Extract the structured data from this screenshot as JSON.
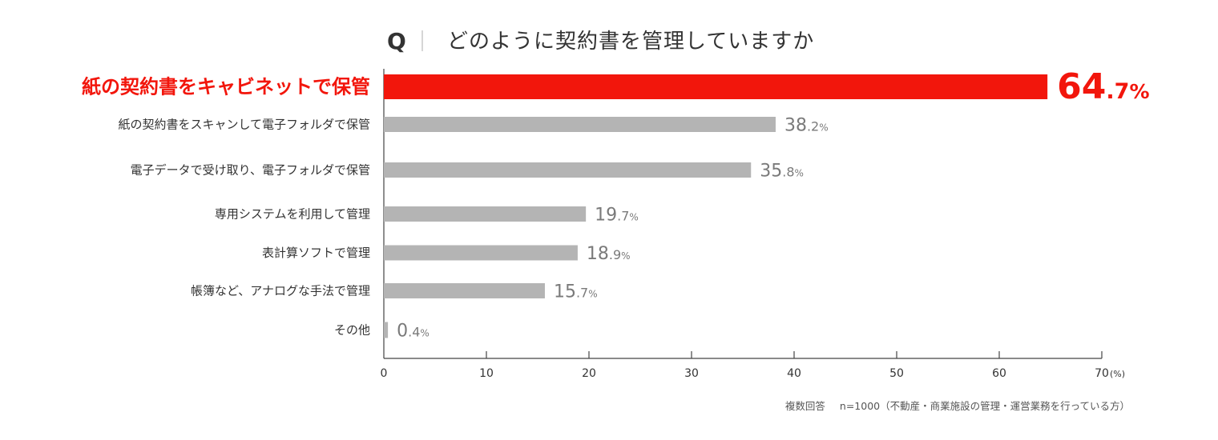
{
  "title": {
    "q": "Q",
    "text": "どのように契約書を管理していますか"
  },
  "chart_data": {
    "type": "bar",
    "orientation": "horizontal",
    "categories": [
      "紙の契約書をキャビネットで保管",
      "紙の契約書をスキャンして電子フォルダで保管",
      "電子データで受け取り、電子フォルダで保管",
      "専用システムを利用して管理",
      "表計算ソフトで管理",
      "帳簿など、アナログな手法で管理",
      "その他"
    ],
    "values": [
      64.7,
      38.2,
      35.8,
      19.7,
      18.9,
      15.7,
      0.4
    ],
    "unit": "%",
    "xlim": [
      0,
      70
    ],
    "xticks": [
      0,
      10,
      20,
      30,
      40,
      50,
      60,
      70
    ],
    "x_unit_label": "(%)",
    "highlight_index": 0,
    "grid": false,
    "legend": "none"
  },
  "colors": {
    "highlight": "#f2160c",
    "bar": "#b4b4b4",
    "value_text": "#7a7a7a",
    "text": "#333333",
    "axis": "#444444"
  },
  "footnote": {
    "response_type": "複数回答",
    "sample": "n=1000（不動産・商業施設の管理・運営業務を行っている方）"
  }
}
